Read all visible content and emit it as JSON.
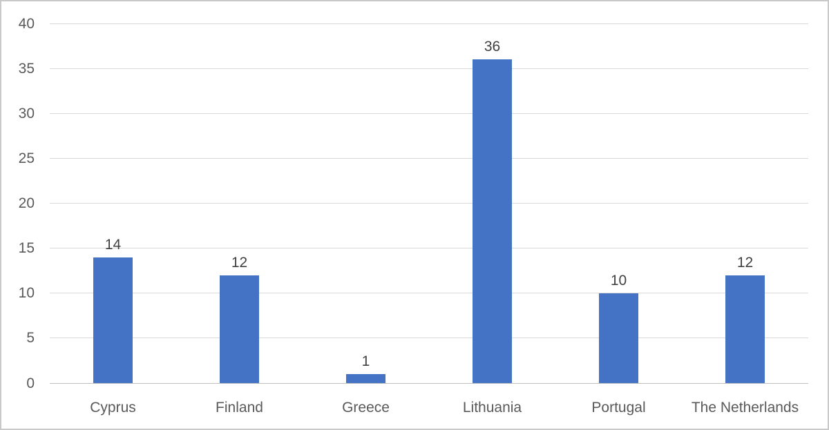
{
  "chart_data": {
    "type": "bar",
    "title": "",
    "xlabel": "",
    "ylabel": "",
    "categories": [
      "Cyprus",
      "Finland",
      "Greece",
      "Lithuania",
      "Portugal",
      "The Netherlands"
    ],
    "values": [
      14,
      12,
      1,
      36,
      10,
      12
    ],
    "data_labels": [
      "14",
      "12",
      "1",
      "36",
      "10",
      "12"
    ],
    "ylim": [
      0,
      40
    ],
    "yticks": [
      0,
      5,
      10,
      15,
      20,
      25,
      30,
      35,
      40
    ],
    "ytick_labels": [
      "0",
      "5",
      "10",
      "15",
      "20",
      "25",
      "30",
      "35",
      "40"
    ],
    "grid": true,
    "legend": false,
    "colors": {
      "bar": "#4472C4",
      "gridline": "#D9D9D9",
      "axis_line": "#BFBFBF",
      "axis_text": "#595959",
      "data_label_text": "#404040",
      "background": "#FFFFFF",
      "frame_border": "#C9C9C9"
    }
  }
}
